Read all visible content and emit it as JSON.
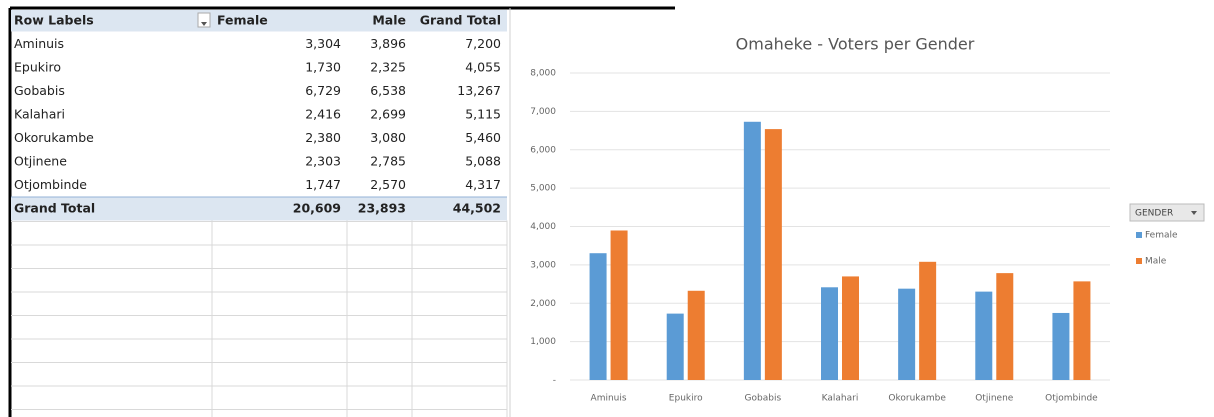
{
  "table": {
    "header": [
      "Row Labels",
      "Female",
      "Male",
      "Grand Total"
    ],
    "rows": [
      [
        "Aminuis",
        "3,304",
        "3,896",
        "7,200"
      ],
      [
        "Epukiro",
        "1,730",
        "2,325",
        "4,055"
      ],
      [
        "Gobabis",
        "6,729",
        "6,538",
        "13,267"
      ],
      [
        "Kalahari",
        "2,416",
        "2,699",
        "5,115"
      ],
      [
        "Okorukambe",
        "2,380",
        "3,080",
        "5,460"
      ],
      [
        "Otjinene",
        "2,303",
        "2,785",
        "5,088"
      ],
      [
        "Otjombinde",
        "1,747",
        "2,570",
        "4,317"
      ]
    ],
    "total": [
      "Grand Total",
      "20,609",
      "23,893",
      "44,502"
    ]
  },
  "chart_data": {
    "type": "bar",
    "title": "Omaheke - Voters per Gender",
    "categories": [
      "Aminuis",
      "Epukiro",
      "Gobabis",
      "Kalahari",
      "Okorukambe",
      "Otjinene",
      "Otjombinde"
    ],
    "series": [
      {
        "name": "Female",
        "color": "#5b9bd5",
        "values": [
          3304,
          1730,
          6729,
          2416,
          2380,
          2303,
          1747
        ]
      },
      {
        "name": "Male",
        "color": "#ed7d31",
        "values": [
          3896,
          2325,
          6538,
          2699,
          3080,
          2785,
          2570
        ]
      }
    ],
    "ylim": [
      0,
      8000
    ],
    "yticks": [
      {
        "value": 0,
        "label": "-"
      },
      {
        "value": 1000,
        "label": "1,000"
      },
      {
        "value": 2000,
        "label": "2,000"
      },
      {
        "value": 3000,
        "label": "3,000"
      },
      {
        "value": 4000,
        "label": "4,000"
      },
      {
        "value": 5000,
        "label": "5,000"
      },
      {
        "value": 6000,
        "label": "6,000"
      },
      {
        "value": 7000,
        "label": "7,000"
      },
      {
        "value": 8000,
        "label": "8,000"
      }
    ],
    "grid": true,
    "legend": {
      "title": "GENDER",
      "position": "right"
    }
  }
}
